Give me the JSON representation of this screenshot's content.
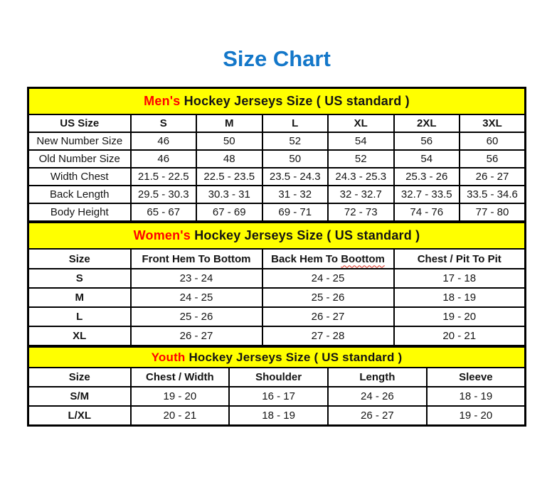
{
  "title": "Size Chart",
  "colors": {
    "title_blue": "#1377c9",
    "band_yellow": "#ffff00",
    "highlight_red": "#ff0000",
    "squiggle_red": "#e0301e",
    "border_black": "#000000",
    "text_black": "#141414",
    "background": "#ffffff"
  },
  "chart_data": [
    {
      "type": "table",
      "name": "men",
      "title_highlight": "Men's",
      "title_rest": "Hockey Jerseys Size ( US standard )",
      "columns": [
        "US Size",
        "S",
        "M",
        "L",
        "XL",
        "2XL",
        "3XL"
      ],
      "rows": [
        [
          "New Number Size",
          "46",
          "50",
          "52",
          "54",
          "56",
          "60"
        ],
        [
          "Old Number Size",
          "46",
          "48",
          "50",
          "52",
          "54",
          "56"
        ],
        [
          "Width Chest",
          "21.5 - 22.5",
          "22.5 - 23.5",
          "23.5 - 24.3",
          "24.3 - 25.3",
          "25.3 - 26",
          "26 - 27"
        ],
        [
          "Back Length",
          "29.5 - 30.3",
          "30.3 - 31",
          "31 - 32",
          "32 - 32.7",
          "32.7 - 33.5",
          "33.5 - 34.6"
        ],
        [
          "Body Height",
          "65 - 67",
          "67 - 69",
          "69 - 71",
          "72 - 73",
          "74 - 76",
          "77 - 80"
        ]
      ]
    },
    {
      "type": "table",
      "name": "women",
      "title_highlight": "Women's",
      "title_rest": "Hockey Jerseys Size ( US standard )",
      "columns": [
        "Size",
        "Front Hem To Bottom",
        "Back Hem To Boottom",
        "Chest / Pit To Pit"
      ],
      "spellcheck_underline": {
        "column_index": 2,
        "word": "Boottom"
      },
      "rows": [
        [
          "S",
          "23 - 24",
          "24 - 25",
          "17 - 18"
        ],
        [
          "M",
          "24 - 25",
          "25 - 26",
          "18 - 19"
        ],
        [
          "L",
          "25 - 26",
          "26 - 27",
          "19 - 20"
        ],
        [
          "XL",
          "26 - 27",
          "27 - 28",
          "20 - 21"
        ]
      ]
    },
    {
      "type": "table",
      "name": "youth",
      "title_highlight": "Youth",
      "title_rest": "Hockey Jerseys Size ( US standard )",
      "columns": [
        "Size",
        "Chest / Width",
        "Shoulder",
        "Length",
        "Sleeve"
      ],
      "rows": [
        [
          "S/M",
          "19 - 20",
          "16 - 17",
          "24 - 26",
          "18 - 19"
        ],
        [
          "L/XL",
          "20 - 21",
          "18 - 19",
          "26 - 27",
          "19 - 20"
        ]
      ]
    }
  ]
}
